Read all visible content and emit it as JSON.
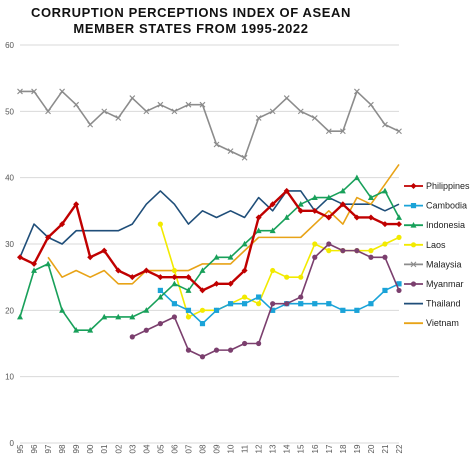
{
  "chart_data": {
    "type": "line",
    "title": [
      "CORRUPTION PERCEPTIONS INDEX OF ASEAN",
      "MEMBER STATES FROM 1995-2022"
    ],
    "x": [
      "95",
      "96",
      "97",
      "98",
      "99",
      "00",
      "01",
      "02",
      "03",
      "04",
      "05",
      "06",
      "07",
      "08",
      "09",
      "10",
      "11",
      "12",
      "13",
      "14",
      "15",
      "16",
      "17",
      "18",
      "19",
      "20",
      "21",
      "22"
    ],
    "ylim": [
      0,
      60
    ],
    "yticks": [
      "0",
      "10",
      "20",
      "30",
      "40",
      "50",
      "60"
    ],
    "grid": true,
    "legend_position": "right",
    "series": [
      {
        "name": "Philippines",
        "color": "#c00000",
        "marker": "diamond",
        "values": [
          28,
          27,
          31,
          33,
          36,
          28,
          29,
          26,
          25,
          26,
          25,
          25,
          25,
          23,
          24,
          24,
          26,
          34,
          36,
          38,
          35,
          35,
          34,
          36,
          34,
          34,
          33,
          33
        ]
      },
      {
        "name": "Cambodia",
        "color": "#1aa3d8",
        "marker": "square",
        "values": [
          null,
          null,
          null,
          null,
          null,
          null,
          null,
          null,
          null,
          null,
          23,
          21,
          20,
          18,
          20,
          21,
          21,
          22,
          20,
          21,
          21,
          21,
          21,
          20,
          20,
          21,
          23,
          24
        ]
      },
      {
        "name": "Indonesia",
        "color": "#18a05a",
        "marker": "triangle",
        "values": [
          19,
          26,
          27,
          20,
          17,
          17,
          19,
          19,
          19,
          20,
          22,
          24,
          23,
          26,
          28,
          28,
          30,
          32,
          32,
          34,
          36,
          37,
          37,
          38,
          40,
          37,
          38,
          34
        ]
      },
      {
        "name": "Laos",
        "color": "#f2ea00",
        "marker": "circle",
        "values": [
          null,
          null,
          null,
          null,
          null,
          null,
          null,
          null,
          null,
          null,
          33,
          26,
          19,
          20,
          20,
          21,
          22,
          21,
          26,
          25,
          25,
          30,
          29,
          29,
          29,
          29,
          30,
          31
        ]
      },
      {
        "name": "Malaysia",
        "color": "#8c8c8c",
        "marker": "x",
        "values": [
          53,
          53,
          50,
          53,
          51,
          48,
          50,
          49,
          52,
          50,
          51,
          50,
          51,
          51,
          45,
          44,
          43,
          49,
          50,
          52,
          50,
          49,
          47,
          47,
          53,
          51,
          48,
          47
        ]
      },
      {
        "name": "Myanmar",
        "color": "#7b3f6e",
        "marker": "circle",
        "values": [
          null,
          null,
          null,
          null,
          null,
          null,
          null,
          null,
          16,
          17,
          18,
          19,
          14,
          13,
          14,
          14,
          15,
          15,
          21,
          21,
          22,
          28,
          30,
          29,
          29,
          28,
          28,
          23
        ]
      },
      {
        "name": "Thailand",
        "color": "#1f4e79",
        "marker": "none",
        "values": [
          28,
          33,
          31,
          30,
          32,
          32,
          32,
          32,
          33,
          36,
          38,
          36,
          33,
          35,
          34,
          35,
          34,
          37,
          35,
          38,
          38,
          35,
          37,
          36,
          36,
          36,
          35,
          36
        ]
      },
      {
        "name": "Vietnam",
        "color": "#e8a317",
        "marker": "none",
        "values": [
          null,
          null,
          28,
          25,
          26,
          25,
          26,
          24,
          24,
          26,
          26,
          26,
          26,
          27,
          27,
          27,
          29,
          31,
          31,
          31,
          31,
          33,
          35,
          33,
          37,
          36,
          39,
          42
        ]
      }
    ]
  }
}
